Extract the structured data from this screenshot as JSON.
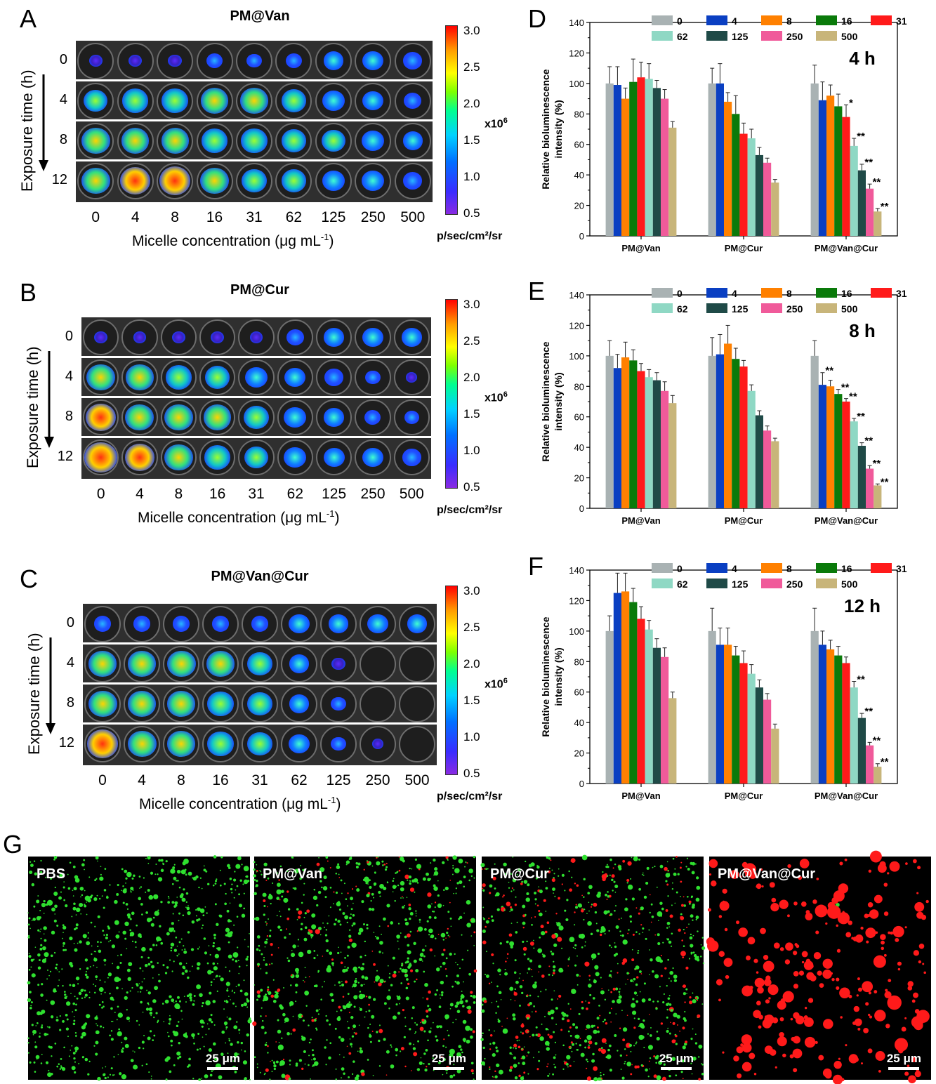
{
  "panels_left": [
    {
      "letter": "A",
      "title": "PM@Van",
      "top": 10
    },
    {
      "letter": "B",
      "title": "PM@Cur",
      "top": 400
    },
    {
      "letter": "C",
      "title": "PM@Van@Cur",
      "top": 808
    }
  ],
  "rows": [
    "0",
    "4",
    "8",
    "12"
  ],
  "exposure_label": "Exposure time (h)",
  "concentrations": [
    "0",
    "4",
    "8",
    "16",
    "31",
    "62",
    "125",
    "250",
    "500"
  ],
  "xlabel": "Micelle concentration (μg mL",
  "xlabel_sup": "-1",
  "xlabel_close": ")",
  "colorbar": {
    "ticks": [
      "3.0",
      "2.5",
      "2.0",
      "1.5",
      "1.0",
      "0.5"
    ],
    "exponent": "x10",
    "exponent_sup": "6",
    "unit": "p/sec/cm²/sr"
  },
  "intensity_grid": [
    [
      [
        0.15,
        0.15,
        0.15,
        0.25,
        0.2,
        0.25,
        0.4,
        0.45,
        0.35
      ],
      [
        0.55,
        0.65,
        0.65,
        0.7,
        0.7,
        0.6,
        0.5,
        0.45,
        0.3
      ],
      [
        0.75,
        0.7,
        0.7,
        0.65,
        0.65,
        0.6,
        0.55,
        0.5,
        0.4
      ],
      [
        0.75,
        0.8,
        0.85,
        0.75,
        0.6,
        0.6,
        0.5,
        0.5,
        0.35
      ]
    ],
    [
      [
        0.15,
        0.1,
        0.15,
        0.15,
        0.12,
        0.3,
        0.4,
        0.45,
        0.4
      ],
      [
        0.75,
        0.7,
        0.65,
        0.6,
        0.5,
        0.45,
        0.35,
        0.2,
        0.05
      ],
      [
        0.8,
        0.75,
        0.75,
        0.7,
        0.6,
        0.5,
        0.4,
        0.25,
        0.2
      ],
      [
        0.9,
        0.8,
        0.75,
        0.65,
        0.55,
        0.5,
        0.45,
        0.45,
        0.35
      ]
    ],
    [
      [
        0.3,
        0.3,
        0.3,
        0.3,
        0.3,
        0.45,
        0.4,
        0.45,
        0.4
      ],
      [
        0.7,
        0.7,
        0.75,
        0.7,
        0.6,
        0.4,
        0.15,
        0,
        0
      ],
      [
        0.75,
        0.7,
        0.7,
        0.65,
        0.6,
        0.4,
        0.2,
        0,
        0
      ],
      [
        0.85,
        0.75,
        0.7,
        0.65,
        0.6,
        0.45,
        0.2,
        0.05,
        0
      ]
    ]
  ],
  "chart_data": [
    {
      "panel": "D",
      "type": "bar",
      "time_label": "4 h",
      "ylabel": "Relative bioluminescence intensity (%)",
      "ylim": [
        0,
        140
      ],
      "yticks": [
        0,
        20,
        40,
        60,
        80,
        100,
        120,
        140
      ],
      "groups": [
        "PM@Van",
        "PM@Cur",
        "PM@Van@Cur"
      ],
      "series_names": [
        "0",
        "4",
        "8",
        "16",
        "31",
        "62",
        "125",
        "250",
        "500"
      ],
      "series_colors": [
        "#a9b2b3",
        "#0a3fc2",
        "#ff8000",
        "#0a7a0a",
        "#ff1a1a",
        "#8fd8c4",
        "#1f4a47",
        "#f05a9a",
        "#c8b57a"
      ],
      "values": [
        [
          100,
          99,
          90,
          101,
          104,
          103,
          97,
          90,
          71
        ],
        [
          100,
          100,
          88,
          80,
          67,
          64,
          53,
          48,
          35
        ],
        [
          100,
          89,
          92,
          85,
          78,
          59,
          43,
          31,
          16
        ]
      ],
      "errors": [
        [
          11,
          12,
          7,
          15,
          10,
          10,
          5,
          6,
          4
        ],
        [
          10,
          13,
          6,
          12,
          7,
          6,
          5,
          3,
          2
        ],
        [
          12,
          12,
          7,
          8,
          8,
          5,
          4,
          3,
          2
        ]
      ],
      "annotations": [
        [],
        [],
        [
          "",
          "",
          "",
          "",
          "*",
          "**",
          "**",
          "**",
          "**"
        ]
      ]
    },
    {
      "panel": "E",
      "type": "bar",
      "time_label": "8 h",
      "ylabel": "Relative bioluminescence intensity (%)",
      "ylim": [
        0,
        140
      ],
      "yticks": [
        0,
        20,
        40,
        60,
        80,
        100,
        120,
        140
      ],
      "groups": [
        "PM@Van",
        "PM@Cur",
        "PM@Van@Cur"
      ],
      "series_names": [
        "0",
        "4",
        "8",
        "16",
        "31",
        "62",
        "125",
        "250",
        "500"
      ],
      "series_colors": [
        "#a9b2b3",
        "#0a3fc2",
        "#ff8000",
        "#0a7a0a",
        "#ff1a1a",
        "#8fd8c4",
        "#1f4a47",
        "#f05a9a",
        "#c8b57a"
      ],
      "values": [
        [
          100,
          92,
          99,
          97,
          90,
          86,
          84,
          77,
          69
        ],
        [
          100,
          101,
          108,
          98,
          93,
          77,
          61,
          51,
          44
        ],
        [
          100,
          81,
          80,
          75,
          70,
          57,
          41,
          26,
          15
        ]
      ],
      "errors": [
        [
          10,
          9,
          10,
          7,
          5,
          5,
          5,
          6,
          5
        ],
        [
          12,
          13,
          12,
          7,
          4,
          4,
          3,
          3,
          2
        ],
        [
          10,
          8,
          4,
          3,
          2,
          2,
          2,
          2,
          1
        ]
      ],
      "annotations": [
        [],
        [],
        [
          "",
          "**",
          "",
          "**",
          "**",
          "**",
          "**",
          "**",
          "**"
        ]
      ]
    },
    {
      "panel": "F",
      "type": "bar",
      "time_label": "12 h",
      "ylabel": "Relative bioluminescence intensity (%)",
      "ylim": [
        0,
        140
      ],
      "yticks": [
        0,
        20,
        40,
        60,
        80,
        100,
        120,
        140
      ],
      "groups": [
        "PM@Van",
        "PM@Cur",
        "PM@Van@Cur"
      ],
      "series_names": [
        "0",
        "4",
        "8",
        "16",
        "31",
        "62",
        "125",
        "250",
        "500"
      ],
      "series_colors": [
        "#a9b2b3",
        "#0a3fc2",
        "#ff8000",
        "#0a7a0a",
        "#ff1a1a",
        "#8fd8c4",
        "#1f4a47",
        "#f05a9a",
        "#c8b57a"
      ],
      "values": [
        [
          100,
          125,
          126,
          119,
          108,
          101,
          89,
          83,
          56
        ],
        [
          100,
          91,
          91,
          84,
          79,
          72,
          63,
          55,
          36
        ],
        [
          100,
          91,
          88,
          84,
          79,
          63,
          43,
          25,
          11
        ]
      ],
      "errors": [
        [
          10,
          13,
          12,
          9,
          8,
          6,
          6,
          6,
          4
        ],
        [
          15,
          11,
          11,
          6,
          8,
          6,
          5,
          4,
          3
        ],
        [
          15,
          9,
          6,
          6,
          4,
          4,
          3,
          2,
          2
        ]
      ],
      "annotations": [
        [],
        [],
        [
          "",
          "",
          "",
          "",
          "",
          "**",
          "**",
          "**",
          "**"
        ]
      ]
    }
  ],
  "panel_G": {
    "letter": "G",
    "images": [
      {
        "label": "PBS",
        "green": 1.0,
        "red": 0.0,
        "scale": "25 μm"
      },
      {
        "label": "PM@Van",
        "green": 0.75,
        "red": 0.12,
        "scale": "25 μm"
      },
      {
        "label": "PM@Cur",
        "green": 0.6,
        "red": 0.2,
        "scale": "25 μm"
      },
      {
        "label": "PM@Van@Cur",
        "green": 0.0,
        "red": 1.0,
        "scale": "25 μm"
      }
    ]
  }
}
